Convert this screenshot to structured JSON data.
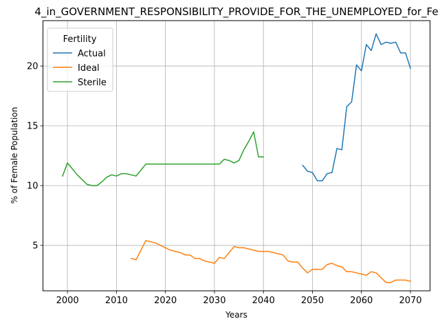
{
  "chart_data": {
    "type": "line",
    "title": "4_in_GOVERNMENT_RESPONSIBILITY_PROVIDE_FOR_THE_UNEMPLOYED_for_Fe",
    "xlabel": "Years",
    "ylabel": "% of Female Population",
    "xlim": [
      1995,
      2074
    ],
    "ylim": [
      1.2,
      23.8
    ],
    "xticks": [
      2000,
      2010,
      2020,
      2030,
      2040,
      2050,
      2060,
      2070
    ],
    "yticks": [
      5,
      10,
      15,
      20
    ],
    "grid": true,
    "legend": {
      "title": "Fertility",
      "placement": "top-left"
    },
    "series": [
      {
        "name": "Actual",
        "color": "#1f77b4",
        "x": [
          2048,
          2049,
          2050,
          2051,
          2052,
          2053,
          2054,
          2055,
          2056,
          2057,
          2058,
          2059,
          2060,
          2061,
          2062,
          2063,
          2064,
          2065,
          2066,
          2067,
          2068,
          2069,
          2070
        ],
        "y": [
          11.7,
          11.2,
          11.1,
          10.4,
          10.4,
          11.0,
          11.1,
          13.1,
          13.0,
          16.6,
          17.0,
          20.1,
          19.6,
          21.8,
          21.3,
          22.7,
          21.8,
          22.0,
          21.9,
          22.0,
          21.1,
          21.1,
          19.8
        ]
      },
      {
        "name": "Ideal",
        "color": "#ff7f0e",
        "x": [
          2013,
          2014,
          2015,
          2016,
          2017,
          2018,
          2019,
          2020,
          2021,
          2022,
          2023,
          2024,
          2025,
          2026,
          2027,
          2028,
          2029,
          2030,
          2031,
          2032,
          2033,
          2034,
          2035,
          2036,
          2037,
          2038,
          2039,
          2040,
          2041,
          2042,
          2043,
          2044,
          2045,
          2046,
          2047,
          2048,
          2049,
          2050,
          2051,
          2052,
          2053,
          2054,
          2055,
          2056,
          2057,
          2058,
          2059,
          2060,
          2061,
          2062,
          2063,
          2064,
          2065,
          2066,
          2067,
          2068,
          2069,
          2070
        ],
        "y": [
          3.9,
          3.8,
          4.6,
          5.4,
          5.3,
          5.2,
          5.0,
          4.8,
          4.6,
          4.5,
          4.4,
          4.2,
          4.2,
          3.9,
          3.9,
          3.7,
          3.6,
          3.5,
          4.0,
          3.9,
          4.4,
          4.9,
          4.8,
          4.8,
          4.7,
          4.6,
          4.5,
          4.5,
          4.5,
          4.4,
          4.3,
          4.2,
          3.7,
          3.6,
          3.6,
          3.1,
          2.7,
          3.0,
          3.0,
          3.0,
          3.4,
          3.5,
          3.3,
          3.2,
          2.8,
          2.8,
          2.7,
          2.6,
          2.5,
          2.8,
          2.7,
          2.3,
          1.9,
          1.9,
          2.1,
          2.1,
          2.1,
          2.0
        ]
      },
      {
        "name": "Sterile",
        "color": "#2ca02c",
        "x": [
          1999,
          2000,
          2001,
          2002,
          2003,
          2004,
          2005,
          2006,
          2007,
          2008,
          2009,
          2010,
          2011,
          2012,
          2013,
          2014,
          2015,
          2016,
          2017,
          2018,
          2019,
          2020,
          2021,
          2022,
          2023,
          2024,
          2025,
          2026,
          2027,
          2028,
          2029,
          2030,
          2031,
          2032,
          2033,
          2034,
          2035,
          2036,
          2037,
          2038,
          2039,
          2040
        ],
        "y": [
          10.8,
          11.9,
          11.4,
          10.9,
          10.5,
          10.1,
          10.0,
          10.0,
          10.3,
          10.7,
          10.9,
          10.8,
          11.0,
          11.0,
          10.9,
          10.8,
          11.3,
          11.8,
          11.8,
          11.8,
          11.8,
          11.8,
          11.8,
          11.8,
          11.8,
          11.8,
          11.8,
          11.8,
          11.8,
          11.8,
          11.8,
          11.8,
          11.8,
          12.2,
          12.1,
          11.9,
          12.1,
          13.0,
          13.7,
          14.5,
          12.4,
          12.4
        ]
      }
    ]
  }
}
